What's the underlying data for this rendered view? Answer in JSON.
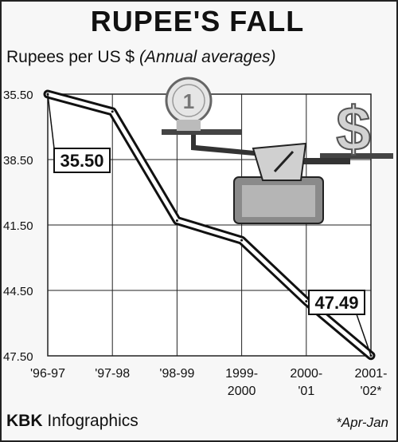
{
  "chart_data": {
    "type": "line",
    "title": "RUPEE'S FALL",
    "subtitle_unit": "Rupees per US $",
    "subtitle_note": "(Annual averages)",
    "categories": [
      {
        "line1": "'96-97",
        "line2": ""
      },
      {
        "line1": "'97-98",
        "line2": ""
      },
      {
        "line1": "'98-99",
        "line2": ""
      },
      {
        "line1": "1999-",
        "line2": "2000"
      },
      {
        "line1": "2000-",
        "line2": "'01"
      },
      {
        "line1": "2001-",
        "line2": "'02*"
      }
    ],
    "values": [
      35.5,
      36.3,
      41.3,
      42.2,
      45.0,
      47.49
    ],
    "y_ticks": [
      "35.50",
      "38.50",
      "41.50",
      "44.50",
      "47.50"
    ],
    "ylim": [
      35.5,
      47.5
    ],
    "y_inverted": true,
    "grid": true,
    "callouts": [
      {
        "label": "35.50",
        "index": 0
      },
      {
        "label": "47.49",
        "index": 5
      }
    ]
  },
  "illustration": {
    "coin_label": "1",
    "dollar_glyph": "$"
  },
  "footer": {
    "credit_bold": "KBK",
    "credit_rest": " Infographics",
    "footnote": "*Apr-Jan"
  }
}
